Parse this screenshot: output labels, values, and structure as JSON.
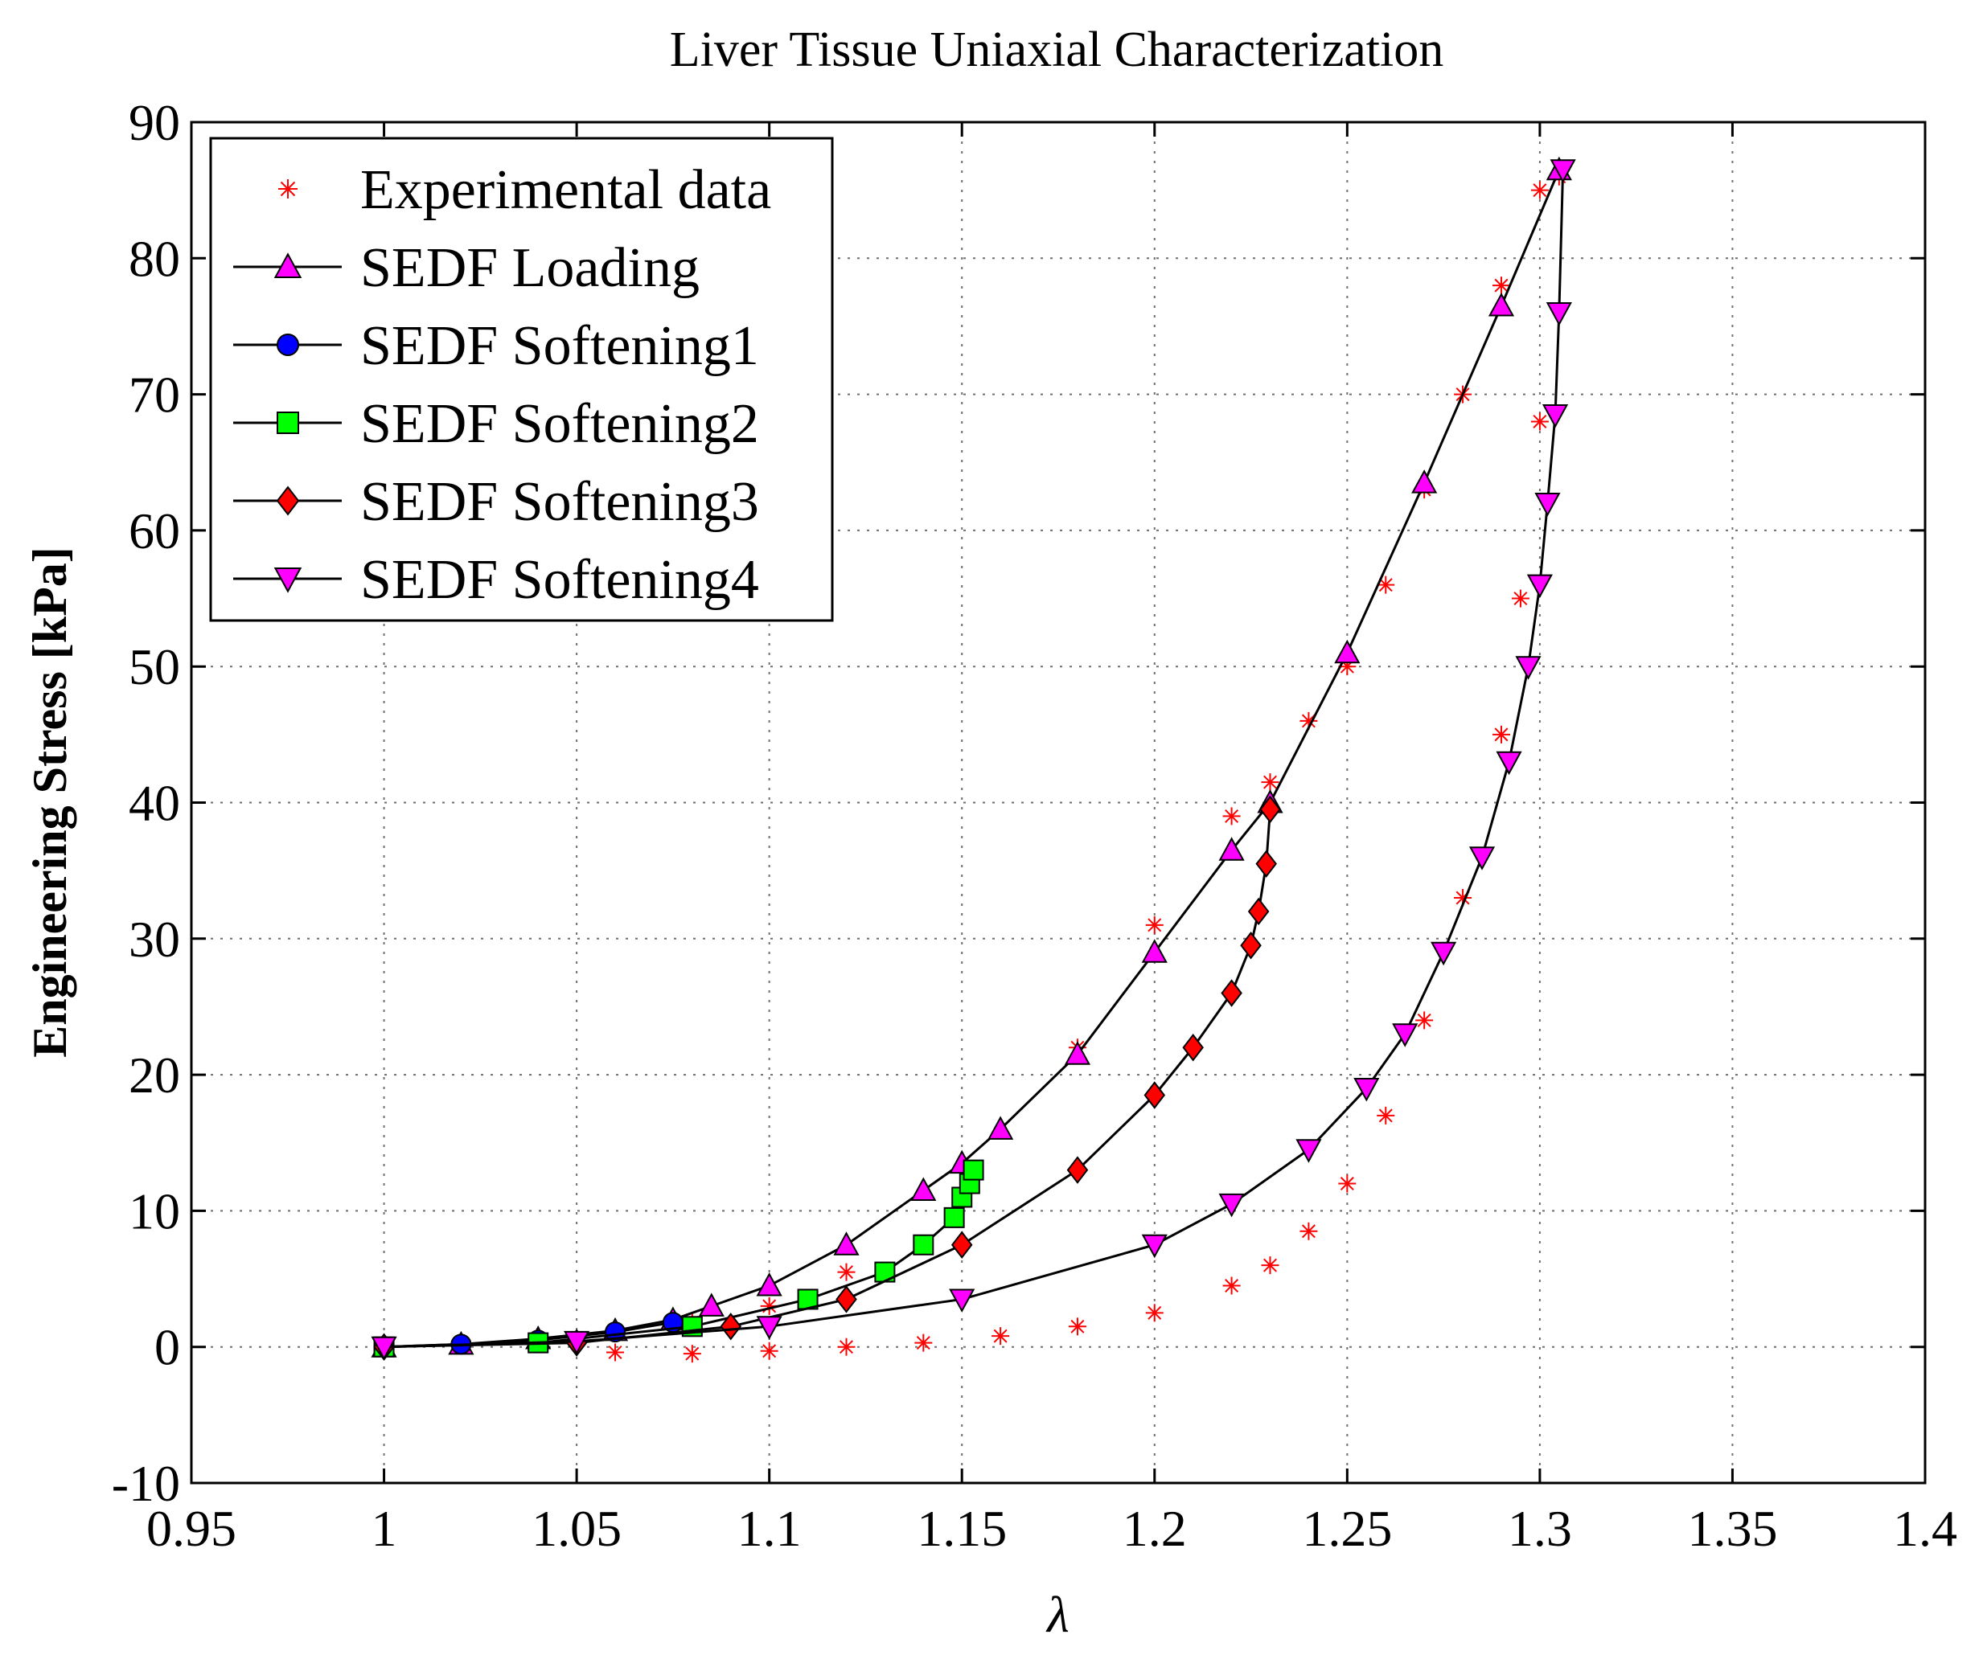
{
  "chart_data": {
    "type": "scatter",
    "title": "Liver Tissue Uniaxial Characterization",
    "xlabel": "λ",
    "ylabel": "Engineering Stress [kPa]",
    "xlim": [
      0.95,
      1.4
    ],
    "ylim": [
      -10,
      90
    ],
    "x_ticks": [
      0.95,
      1.0,
      1.05,
      1.1,
      1.15,
      1.2,
      1.25,
      1.3,
      1.35,
      1.4
    ],
    "x_tick_labels": [
      "0.95",
      "1",
      "1.05",
      "1.1",
      "1.15",
      "1.2",
      "1.25",
      "1.3",
      "1.35",
      "1.4"
    ],
    "y_ticks": [
      -10,
      0,
      10,
      20,
      30,
      40,
      50,
      60,
      70,
      80,
      90
    ],
    "y_tick_labels": [
      "-10",
      "0",
      "10",
      "20",
      "30",
      "40",
      "50",
      "60",
      "70",
      "80",
      "90"
    ],
    "grid": true,
    "legend_position": "top-left",
    "series": [
      {
        "name": "Experimental data",
        "marker": "asterisk",
        "line": false,
        "color": "#ff0000",
        "x": [
          1.0,
          1.02,
          1.04,
          1.06,
          1.08,
          1.1,
          1.12,
          1.15,
          1.18,
          1.2,
          1.22,
          1.23,
          1.24,
          1.25,
          1.26,
          1.27,
          1.28,
          1.29,
          1.3,
          1.305,
          1.3,
          1.295,
          1.29,
          1.28,
          1.27,
          1.26,
          1.25,
          1.24,
          1.23,
          1.22,
          1.2,
          1.18,
          1.16,
          1.14,
          1.12,
          1.1,
          1.08,
          1.06
        ],
        "y": [
          0,
          0.2,
          0.5,
          1,
          1.8,
          3,
          5.5,
          11,
          22,
          31,
          39,
          41.5,
          46,
          50,
          56,
          63,
          70,
          78,
          85,
          86,
          68,
          55,
          45,
          33,
          24,
          17,
          12,
          8.5,
          6,
          4.5,
          2.5,
          1.5,
          0.8,
          0.3,
          0,
          -0.3,
          -0.5,
          -0.4
        ]
      },
      {
        "name": "SEDF Loading",
        "marker": "triangle-up",
        "line": true,
        "color": "#ff00ff",
        "x": [
          1.0,
          1.02,
          1.04,
          1.06,
          1.075,
          1.085,
          1.1,
          1.12,
          1.14,
          1.15,
          1.16,
          1.18,
          1.2,
          1.22,
          1.23,
          1.25,
          1.27,
          1.29,
          1.305
        ],
        "y": [
          0,
          0.2,
          0.6,
          1.2,
          2,
          3,
          4.5,
          7.5,
          11.5,
          13.5,
          16,
          21.5,
          29,
          36.5,
          40,
          51,
          63.5,
          76.5,
          86.5
        ]
      },
      {
        "name": "SEDF Softening1",
        "marker": "circle",
        "line": true,
        "color": "#0000ff",
        "x": [
          1.0,
          1.02,
          1.04,
          1.06,
          1.075
        ],
        "y": [
          0,
          0.2,
          0.5,
          1.1,
          1.8
        ]
      },
      {
        "name": "SEDF Softening2",
        "marker": "square",
        "line": true,
        "color": "#00ff00",
        "x": [
          1.0,
          1.04,
          1.08,
          1.11,
          1.13,
          1.14,
          1.148,
          1.15,
          1.152,
          1.153
        ],
        "y": [
          0,
          0.3,
          1.5,
          3.5,
          5.5,
          7.5,
          9.5,
          11,
          12,
          13
        ]
      },
      {
        "name": "SEDF Softening3",
        "marker": "diamond",
        "line": true,
        "color": "#ff0000",
        "x": [
          1.0,
          1.05,
          1.09,
          1.12,
          1.15,
          1.18,
          1.2,
          1.21,
          1.22,
          1.225,
          1.227,
          1.229,
          1.23
        ],
        "y": [
          0,
          0.3,
          1.5,
          3.5,
          7.5,
          13,
          18.5,
          22,
          26,
          29.5,
          32,
          35.5,
          39.5
        ]
      },
      {
        "name": "SEDF Softening4",
        "marker": "triangle-down",
        "line": true,
        "color": "#ff00ff",
        "x": [
          1.0,
          1.05,
          1.1,
          1.15,
          1.2,
          1.22,
          1.24,
          1.255,
          1.265,
          1.275,
          1.285,
          1.292,
          1.297,
          1.3,
          1.302,
          1.304,
          1.305,
          1.306
        ],
        "y": [
          0,
          0.4,
          1.5,
          3.5,
          7.5,
          10.5,
          14.5,
          19,
          23,
          29,
          36,
          43,
          50,
          56,
          62,
          68.5,
          76,
          86.5
        ]
      }
    ]
  }
}
